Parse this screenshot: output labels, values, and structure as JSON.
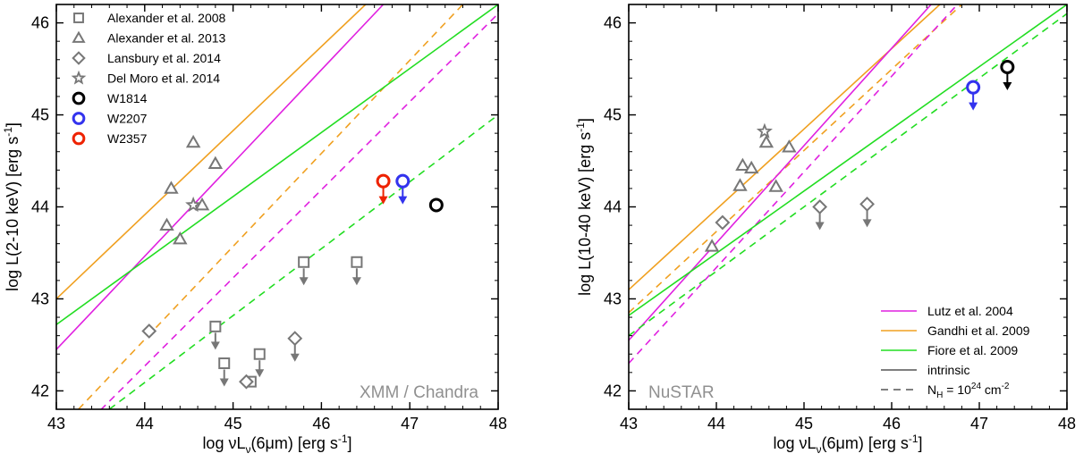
{
  "chart_data": [
    {
      "type": "scatter",
      "panel": "left",
      "xlabel_prefix": "log νL",
      "xlabel_sub": "ν",
      "xlabel_suffix": "(6μm) [erg s",
      "xlabel_sup": "-1",
      "xlabel_end": "]",
      "ylabel_prefix": "log L(2-10 keV) [erg s",
      "ylabel_sup": "-1",
      "ylabel_end": "]",
      "xlim": [
        43,
        48
      ],
      "ylim": [
        41.8,
        46.2
      ],
      "xticks": [
        43,
        44,
        45,
        46,
        47,
        48
      ],
      "yticks": [
        42,
        43,
        44,
        45,
        46
      ],
      "corner_label": "XMM / Chandra",
      "legend_position": "top-left",
      "legend": [
        {
          "label": "Alexander et al. 2008",
          "marker": "square",
          "color": "#777777"
        },
        {
          "label": "Alexander et al. 2013",
          "marker": "triangle",
          "color": "#777777"
        },
        {
          "label": "Lansbury et al. 2014",
          "marker": "diamond",
          "color": "#777777"
        },
        {
          "label": "Del Moro et al. 2014",
          "marker": "star",
          "color": "#777777"
        },
        {
          "label": "W1814",
          "marker": "circle",
          "color": "#000000"
        },
        {
          "label": "W2207",
          "marker": "circle",
          "color": "#3333ee"
        },
        {
          "label": "W2357",
          "marker": "circle",
          "color": "#ee2200"
        }
      ],
      "lines": [
        {
          "relation": "Gandhi et al. 2009",
          "style": "solid",
          "color": "#f0a020",
          "points": [
            [
              43,
              43.0
            ],
            [
              46.5,
              46.2
            ]
          ]
        },
        {
          "relation": "Gandhi et al. 2009",
          "style": "dashed",
          "color": "#f0a020",
          "points": [
            [
              43.25,
              41.8
            ],
            [
              47.6,
              46.2
            ]
          ]
        },
        {
          "relation": "Lutz et al. 2004",
          "style": "solid",
          "color": "#e020e0",
          "points": [
            [
              43,
              42.45
            ],
            [
              46.7,
              46.2
            ]
          ]
        },
        {
          "relation": "Lutz et al. 2004",
          "style": "dashed",
          "color": "#e020e0",
          "points": [
            [
              43.3,
              41.6
            ],
            [
              48,
              46.1
            ]
          ]
        },
        {
          "relation": "Fiore et al. 2009",
          "style": "solid",
          "color": "#22dd22",
          "points": [
            [
              43,
              42.72
            ],
            [
              48,
              46.2
            ]
          ]
        },
        {
          "relation": "Fiore et al. 2009",
          "style": "dashed",
          "color": "#22dd22",
          "points": [
            [
              43.6,
              41.8
            ],
            [
              48,
              45.0
            ]
          ]
        }
      ],
      "points": [
        {
          "set": "Alexander et al. 2008",
          "marker": "square",
          "x": 44.8,
          "y": 42.7,
          "upper_limit": true
        },
        {
          "set": "Alexander et al. 2008",
          "marker": "square",
          "x": 44.9,
          "y": 42.3,
          "upper_limit": true
        },
        {
          "set": "Alexander et al. 2008",
          "marker": "square",
          "x": 45.3,
          "y": 42.4,
          "upper_limit": true
        },
        {
          "set": "Alexander et al. 2008",
          "marker": "square",
          "x": 45.8,
          "y": 43.4,
          "upper_limit": true
        },
        {
          "set": "Alexander et al. 2008",
          "marker": "square",
          "x": 46.4,
          "y": 43.4,
          "upper_limit": true
        },
        {
          "set": "Alexander et al. 2008",
          "marker": "square",
          "x": 45.2,
          "y": 42.1,
          "upper_limit": false
        },
        {
          "set": "Alexander et al. 2013",
          "marker": "triangle",
          "x": 44.3,
          "y": 44.2,
          "upper_limit": false
        },
        {
          "set": "Alexander et al. 2013",
          "marker": "triangle",
          "x": 44.25,
          "y": 43.8,
          "upper_limit": false
        },
        {
          "set": "Alexander et al. 2013",
          "marker": "triangle",
          "x": 44.4,
          "y": 43.65,
          "upper_limit": false
        },
        {
          "set": "Alexander et al. 2013",
          "marker": "triangle",
          "x": 44.55,
          "y": 44.7,
          "upper_limit": false
        },
        {
          "set": "Alexander et al. 2013",
          "marker": "triangle",
          "x": 44.8,
          "y": 44.47,
          "upper_limit": false
        },
        {
          "set": "Alexander et al. 2013",
          "marker": "triangle",
          "x": 44.65,
          "y": 44.02,
          "upper_limit": false
        },
        {
          "set": "Lansbury et al. 2014",
          "marker": "diamond",
          "x": 44.05,
          "y": 42.65,
          "upper_limit": false
        },
        {
          "set": "Lansbury et al. 2014",
          "marker": "diamond",
          "x": 45.7,
          "y": 42.57,
          "upper_limit": true
        },
        {
          "set": "Lansbury et al. 2014",
          "marker": "diamond",
          "x": 45.15,
          "y": 42.1,
          "upper_limit": false
        },
        {
          "set": "Del Moro et al. 2014",
          "marker": "star",
          "x": 44.55,
          "y": 44.02,
          "upper_limit": false
        },
        {
          "set": "W1814",
          "marker": "circle",
          "x": 47.3,
          "y": 44.02,
          "upper_limit": false
        },
        {
          "set": "W2207",
          "marker": "circle",
          "x": 46.92,
          "y": 44.28,
          "upper_limit": true
        },
        {
          "set": "W2357",
          "marker": "circle",
          "x": 46.7,
          "y": 44.28,
          "upper_limit": true
        }
      ]
    },
    {
      "type": "scatter",
      "panel": "right",
      "xlabel_prefix": "log νL",
      "xlabel_sub": "ν",
      "xlabel_suffix": "(6μm) [erg s",
      "xlabel_sup": "-1",
      "xlabel_end": "]",
      "ylabel_prefix": "log L(10-40 keV) [erg s",
      "ylabel_sup": "-1",
      "ylabel_end": "]",
      "xlim": [
        43,
        48
      ],
      "ylim": [
        41.8,
        46.2
      ],
      "xticks": [
        43,
        44,
        45,
        46,
        47,
        48
      ],
      "yticks": [
        42,
        43,
        44,
        45,
        46
      ],
      "corner_label": "NuSTAR",
      "legend_position": "bottom-right",
      "legend": [
        {
          "label": "Lutz et al. 2004",
          "style": "solid",
          "color": "#e020e0"
        },
        {
          "label": "Gandhi et al. 2009",
          "style": "solid",
          "color": "#f0a020"
        },
        {
          "label": "Fiore et al. 2009",
          "style": "solid",
          "color": "#22dd22"
        },
        {
          "label": "intrinsic",
          "style": "solid",
          "color": "#555555"
        },
        {
          "label_prefix": "N",
          "label_sub": "H",
          "label_mid": " = 10",
          "label_sup": "24",
          "label_unit": " cm",
          "label_unit_sup": "-2",
          "style": "dashed",
          "color": "#555555"
        }
      ],
      "lines": [
        {
          "relation": "Gandhi et al. 2009",
          "style": "solid",
          "color": "#f0a020",
          "points": [
            [
              43,
              43.1
            ],
            [
              46.55,
              46.2
            ]
          ]
        },
        {
          "relation": "Gandhi et al. 2009",
          "style": "dashed",
          "color": "#f0a020",
          "points": [
            [
              43,
              42.85
            ],
            [
              46.8,
              46.2
            ]
          ]
        },
        {
          "relation": "Lutz et al. 2004",
          "style": "solid",
          "color": "#e020e0",
          "points": [
            [
              43,
              42.55
            ],
            [
              46.45,
              46.2
            ]
          ]
        },
        {
          "relation": "Lutz et al. 2004",
          "style": "dashed",
          "color": "#e020e0",
          "points": [
            [
              43,
              42.3
            ],
            [
              46.75,
              46.2
            ]
          ]
        },
        {
          "relation": "Fiore et al. 2009",
          "style": "solid",
          "color": "#22dd22",
          "points": [
            [
              43,
              42.82
            ],
            [
              48,
              46.2
            ]
          ]
        },
        {
          "relation": "Fiore et al. 2009",
          "style": "dashed",
          "color": "#22dd22",
          "points": [
            [
              43,
              42.6
            ],
            [
              48,
              46.1
            ]
          ]
        }
      ],
      "points": [
        {
          "set": "Alexander et al. 2013",
          "marker": "triangle",
          "x": 43.95,
          "y": 43.57,
          "upper_limit": false
        },
        {
          "set": "Alexander et al. 2013",
          "marker": "triangle",
          "x": 44.27,
          "y": 44.23,
          "upper_limit": false
        },
        {
          "set": "Alexander et al. 2013",
          "marker": "triangle",
          "x": 44.3,
          "y": 44.45,
          "upper_limit": false
        },
        {
          "set": "Alexander et al. 2013",
          "marker": "triangle",
          "x": 44.4,
          "y": 44.42,
          "upper_limit": false
        },
        {
          "set": "Alexander et al. 2013",
          "marker": "triangle",
          "x": 44.57,
          "y": 44.7,
          "upper_limit": false
        },
        {
          "set": "Alexander et al. 2013",
          "marker": "triangle",
          "x": 44.68,
          "y": 44.22,
          "upper_limit": false
        },
        {
          "set": "Alexander et al. 2013",
          "marker": "triangle",
          "x": 44.83,
          "y": 44.65,
          "upper_limit": false
        },
        {
          "set": "Del Moro et al. 2014",
          "marker": "star",
          "x": 44.55,
          "y": 44.82,
          "upper_limit": false
        },
        {
          "set": "Lansbury et al. 2014",
          "marker": "diamond",
          "x": 44.07,
          "y": 43.83,
          "upper_limit": false
        },
        {
          "set": "Lansbury et al. 2014",
          "marker": "diamond",
          "x": 45.18,
          "y": 44.0,
          "upper_limit": true
        },
        {
          "set": "Lansbury et al. 2014",
          "marker": "diamond",
          "x": 45.72,
          "y": 44.03,
          "upper_limit": true
        },
        {
          "set": "W2207",
          "marker": "circle",
          "x": 46.93,
          "y": 45.3,
          "upper_limit": true
        },
        {
          "set": "W1814",
          "marker": "circle",
          "x": 47.32,
          "y": 45.52,
          "upper_limit": true
        }
      ]
    }
  ]
}
